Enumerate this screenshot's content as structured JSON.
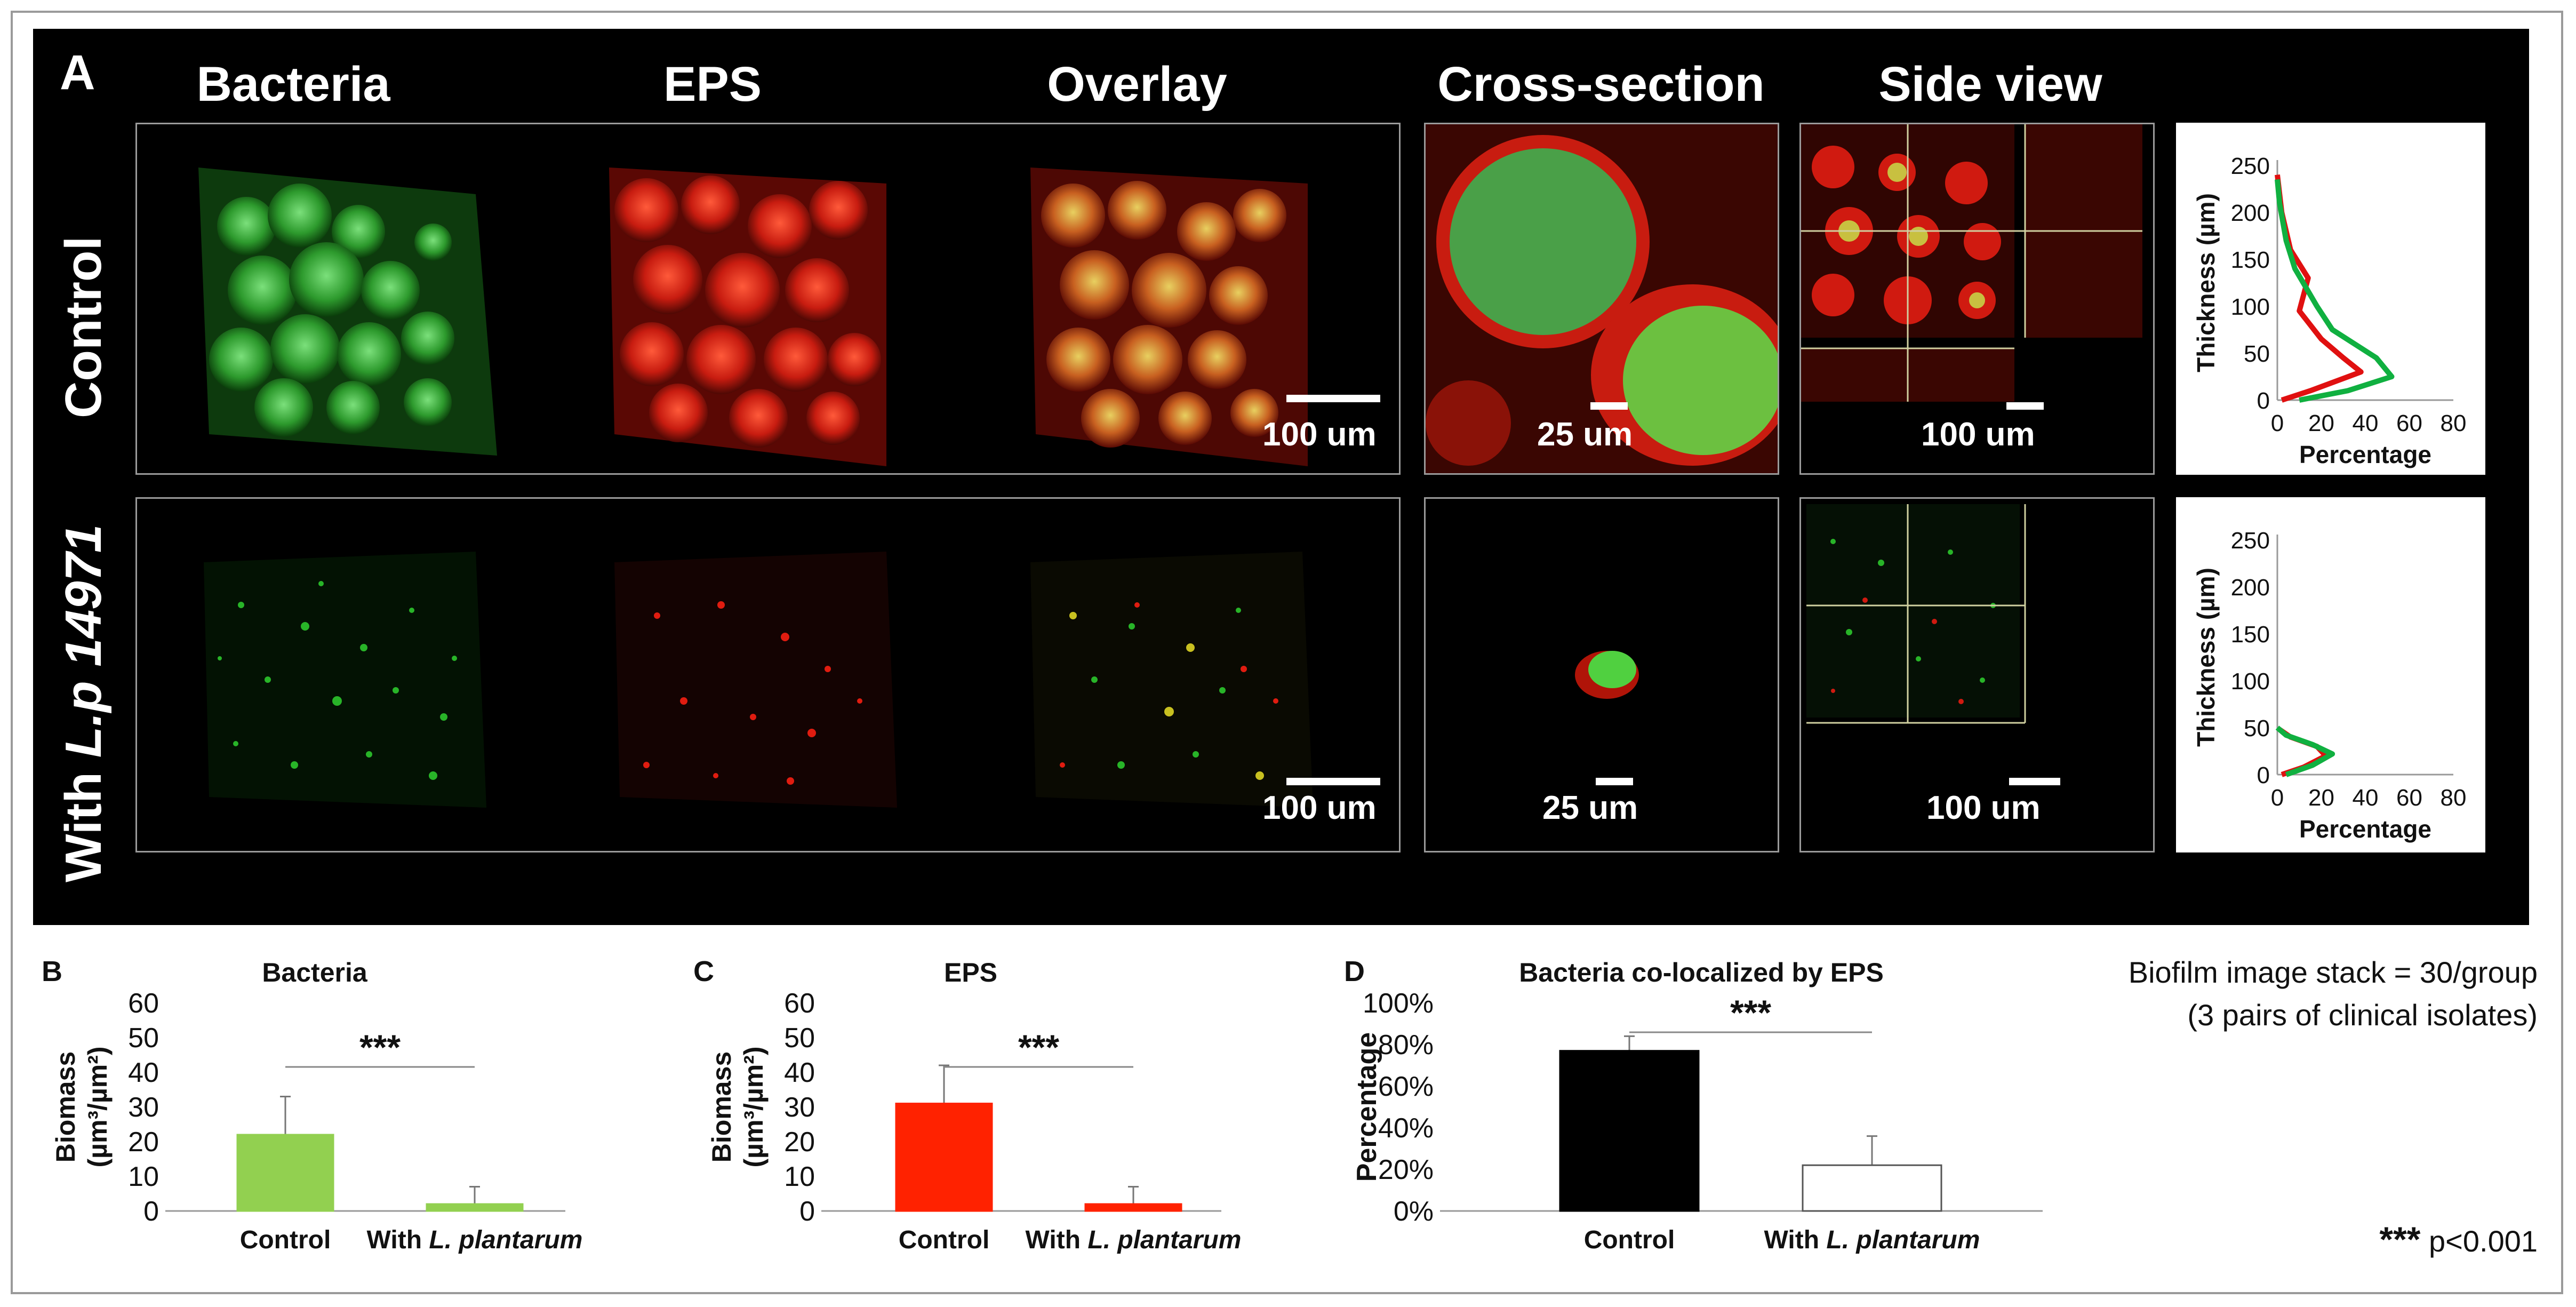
{
  "panel_a": {
    "label": "A",
    "columns": [
      "Bacteria",
      "EPS",
      "Overlay",
      "Cross-section",
      "Side view"
    ],
    "rows": {
      "control": "Control",
      "treated_prefix": "With ",
      "treated_italic": "L.p 14971"
    },
    "scale_bars": [
      "100 um",
      "25 um",
      "100 um",
      "100 um",
      "25 um",
      "100 um"
    ],
    "thickness_charts": [
      {
        "type": "line",
        "ylabel": "Thickness (µm)",
        "xlabel": "Percentage",
        "xticks": [
          "0",
          "20",
          "40",
          "60",
          "80"
        ],
        "yticks": [
          "0",
          "50",
          "100",
          "150",
          "200",
          "250"
        ],
        "xlim": [
          0,
          80
        ],
        "ylim": [
          0,
          250
        ],
        "series": [
          {
            "color": "#e01010",
            "points": [
              [
                2,
                0
              ],
              [
                15,
                10
              ],
              [
                38,
                30
              ],
              [
                30,
                45
              ],
              [
                20,
                65
              ],
              [
                10,
                95
              ],
              [
                14,
                130
              ],
              [
                6,
                160
              ],
              [
                2,
                200
              ],
              [
                0,
                240
              ]
            ]
          },
          {
            "color": "#10b040",
            "points": [
              [
                10,
                0
              ],
              [
                32,
                10
              ],
              [
                52,
                25
              ],
              [
                45,
                45
              ],
              [
                25,
                75
              ],
              [
                18,
                100
              ],
              [
                8,
                140
              ],
              [
                4,
                170
              ],
              [
                1,
                210
              ],
              [
                0,
                235
              ]
            ]
          }
        ]
      },
      {
        "type": "line",
        "ylabel": "Thickness (µm)",
        "xlabel": "Percentage",
        "xticks": [
          "0",
          "20",
          "40",
          "60",
          "80"
        ],
        "yticks": [
          "0",
          "50",
          "100",
          "150",
          "200",
          "250"
        ],
        "xlim": [
          0,
          80
        ],
        "ylim": [
          0,
          250
        ],
        "series": [
          {
            "color": "#e01010",
            "points": [
              [
                2,
                0
              ],
              [
                12,
                8
              ],
              [
                22,
                20
              ],
              [
                18,
                30
              ],
              [
                6,
                40
              ],
              [
                1,
                48
              ]
            ]
          },
          {
            "color": "#10b040",
            "points": [
              [
                4,
                0
              ],
              [
                16,
                10
              ],
              [
                25,
                22
              ],
              [
                16,
                32
              ],
              [
                4,
                42
              ],
              [
                0,
                50
              ]
            ]
          }
        ]
      }
    ]
  },
  "panel_b": {
    "label": "B",
    "chart_data": {
      "type": "bar",
      "title": "Bacteria",
      "ylabel_line1": "Biomass",
      "ylabel_line2": "(µm³/µm²)",
      "categories": [
        "Control",
        "With L. plantarum"
      ],
      "values": [
        22,
        2
      ],
      "errors": [
        11,
        5
      ],
      "ylim": [
        0,
        60
      ],
      "yticks": [
        "0",
        "10",
        "20",
        "30",
        "40",
        "50",
        "60"
      ],
      "colors": [
        "#92d050",
        "#92d050"
      ],
      "significance": "***"
    }
  },
  "panel_c": {
    "label": "C",
    "chart_data": {
      "type": "bar",
      "title": "EPS",
      "ylabel_line1": "Biomass",
      "ylabel_line2": "(µm³/µm²)",
      "categories": [
        "Control",
        "With L. plantarum"
      ],
      "values": [
        31,
        2
      ],
      "errors": [
        11,
        5
      ],
      "ylim": [
        0,
        60
      ],
      "yticks": [
        "0",
        "10",
        "20",
        "30",
        "40",
        "50",
        "60"
      ],
      "colors": [
        "#ff2200",
        "#ff2200"
      ],
      "significance": "***"
    }
  },
  "panel_d": {
    "label": "D",
    "chart_data": {
      "type": "bar",
      "title": "Bacteria co-localized by EPS",
      "ylabel": "Percentage",
      "categories": [
        "Control",
        "With L. plantarum"
      ],
      "values": [
        77,
        22
      ],
      "errors": [
        7,
        14
      ],
      "ylim": [
        0,
        100
      ],
      "yticks": [
        "0%",
        "20%",
        "40%",
        "60%",
        "80%",
        "100%"
      ],
      "colors": [
        "#000000",
        "#ffffff"
      ],
      "significance": "***"
    }
  },
  "notes": {
    "line1": "Biofilm image stack = 30/group",
    "line2": "(3 pairs of clinical isolates)",
    "pvalue_stars": "***",
    "pvalue_text": "p<0.001"
  }
}
